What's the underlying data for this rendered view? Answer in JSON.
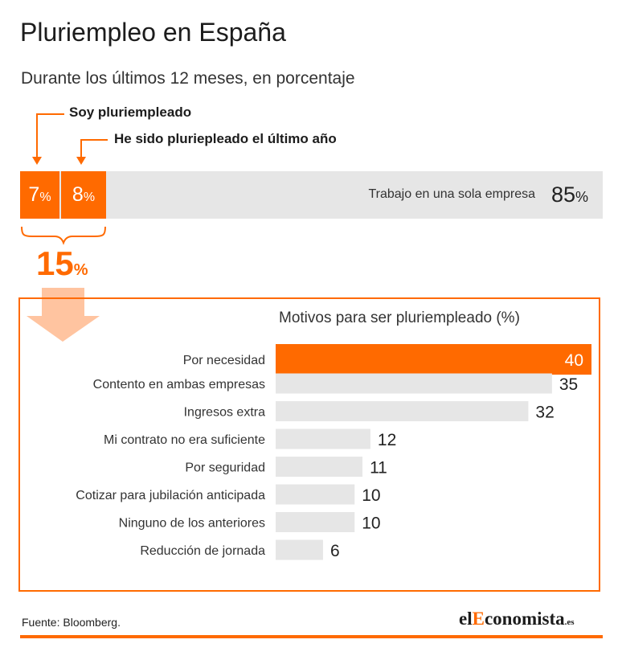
{
  "title": "Pluriempleo en España",
  "subtitle": "Durante los últimos 12 meses, en porcentaje",
  "accent_color": "#ff6a00",
  "bar_bg_color": "#e6e6e6",
  "breakdown": {
    "legend": [
      "Soy pluriempleado",
      "He sido pluriepleado el último año"
    ],
    "segments": [
      {
        "value": "7",
        "unit": "%"
      },
      {
        "value": "8",
        "unit": "%"
      }
    ],
    "rest": {
      "label": "Trabajo en una sola empresa",
      "value": "85",
      "unit": "%"
    },
    "total": {
      "value": "15",
      "unit": "%"
    }
  },
  "chart_data": {
    "type": "bar",
    "orientation": "horizontal",
    "title": "Motivos para ser pluriempleado (%)",
    "categories": [
      "Por necesidad",
      "Contento en ambas empresas",
      "Ingresos extra",
      "Mi contrato no era suficiente",
      "Por seguridad",
      "Cotizar para jubilación anticipada",
      "Ninguno de los anteriores",
      "Reducción de jornada"
    ],
    "values": [
      40,
      35,
      32,
      12,
      11,
      10,
      10,
      6
    ],
    "highlight_index": 0,
    "xlim": [
      0,
      40
    ]
  },
  "footer": {
    "source": "Fuente: Bloomberg.",
    "logo": {
      "pre": "el",
      "accent": "E",
      "main": "conomista",
      "suffix": ".es"
    }
  }
}
